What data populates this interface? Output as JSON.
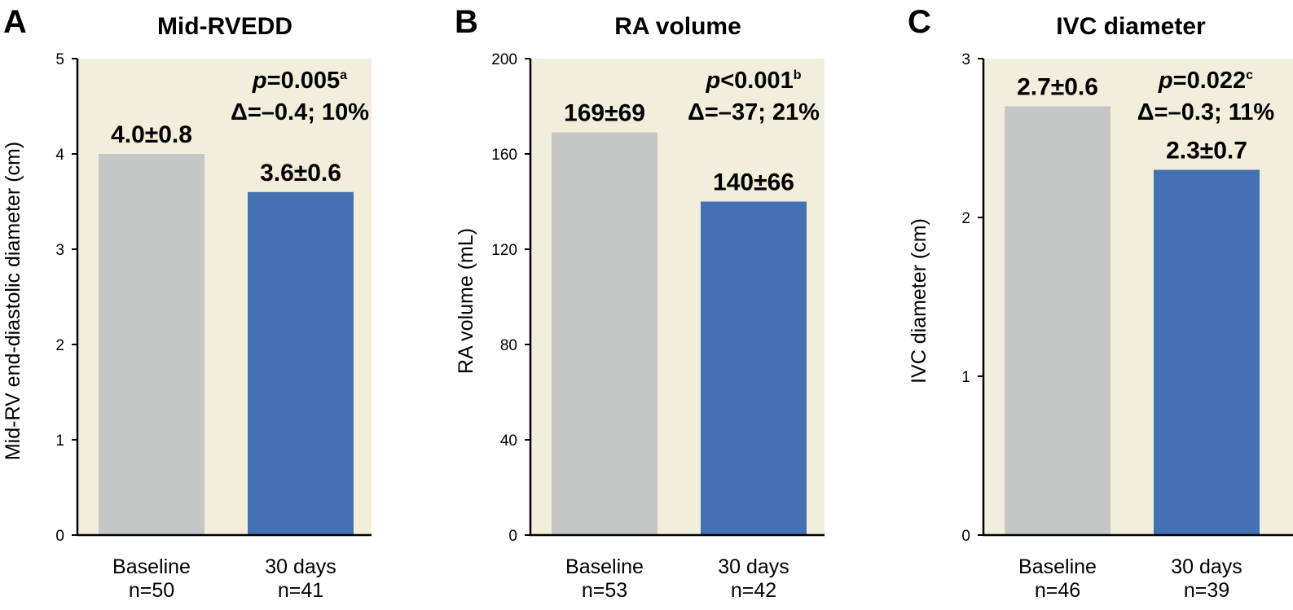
{
  "chart_data": [
    {
      "type": "bar",
      "panel_letter": "A",
      "title": "Mid-RVEDD",
      "ylabel": "Mid-RV end-diastolic diameter (cm)",
      "ylim": [
        0,
        5
      ],
      "yticks": [
        "0",
        "1",
        "2",
        "3",
        "4",
        "5"
      ],
      "categories": [
        "Baseline",
        "30 days"
      ],
      "sample_sizes": [
        "n=50",
        "n=41"
      ],
      "values": [
        4.0,
        3.6
      ],
      "value_labels": [
        "4.0±0.8",
        "3.6±0.6"
      ],
      "bar_colors": [
        "#c5c6c6",
        "#4470b4"
      ],
      "plot_background": "#f1eedb",
      "stat": {
        "p_italic": "p",
        "p_rest": "=0.005",
        "p_sup": "a",
        "delta": "Δ=–0.4; 10%"
      }
    },
    {
      "type": "bar",
      "panel_letter": "B",
      "title": "RA volume",
      "ylabel": "RA volume (mL)",
      "ylim": [
        0,
        200
      ],
      "yticks": [
        "0",
        "40",
        "80",
        "120",
        "160",
        "200"
      ],
      "categories": [
        "Baseline",
        "30 days"
      ],
      "sample_sizes": [
        "n=53",
        "n=42"
      ],
      "values": [
        169,
        140
      ],
      "value_labels": [
        "169±69",
        "140±66"
      ],
      "bar_colors": [
        "#c5c6c6",
        "#4470b4"
      ],
      "plot_background": "#f1eedb",
      "stat": {
        "p_italic": "p",
        "p_rest": "<0.001",
        "p_sup": "b",
        "delta": "Δ=–37; 21%"
      }
    },
    {
      "type": "bar",
      "panel_letter": "C",
      "title": "IVC diameter",
      "ylabel": "IVC diameter (cm)",
      "ylim": [
        0,
        3
      ],
      "yticks": [
        "0",
        "1",
        "2",
        "3"
      ],
      "categories": [
        "Baseline",
        "30 days"
      ],
      "sample_sizes": [
        "n=46",
        "n=39"
      ],
      "values": [
        2.7,
        2.3
      ],
      "value_labels": [
        "2.7±0.6",
        "2.3±0.7"
      ],
      "bar_colors": [
        "#c5c6c6",
        "#4470b4"
      ],
      "plot_background": "#f1eedb",
      "stat": {
        "p_italic": "p",
        "p_rest": "=0.022",
        "p_sup": "c",
        "delta": "Δ=–0.3; 11%"
      }
    }
  ]
}
